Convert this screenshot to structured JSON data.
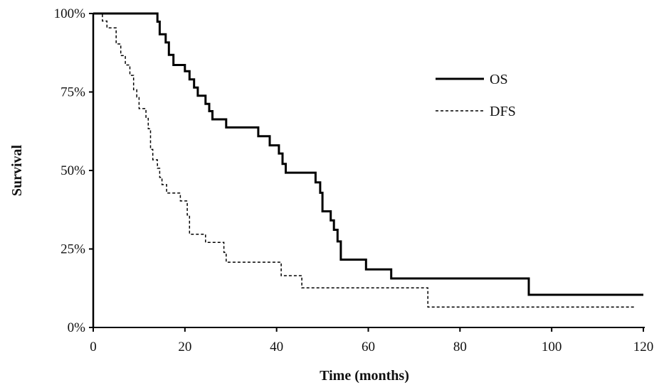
{
  "chart_data": {
    "type": "line",
    "step": true,
    "title": "",
    "xlabel": "Time (months)",
    "ylabel": "Survival",
    "xlim": [
      0,
      120
    ],
    "ylim": [
      0,
      100
    ],
    "x_ticks": [
      "0",
      "20",
      "40",
      "60",
      "80",
      "100",
      "120"
    ],
    "y_ticks": [
      "0%",
      "25%",
      "50%",
      "75%",
      "100%"
    ],
    "grid": false,
    "legend_position": "top-right",
    "series": [
      {
        "name": "OS",
        "line_style": "solid",
        "color": "#000000",
        "points": [
          [
            0,
            100
          ],
          [
            13.5,
            100
          ],
          [
            14,
            97.4
          ],
          [
            14.5,
            93.4
          ],
          [
            15.8,
            90.8
          ],
          [
            16.5,
            86.8
          ],
          [
            17.5,
            83.6
          ],
          [
            20,
            81.6
          ],
          [
            21,
            79.0
          ],
          [
            22,
            76.4
          ],
          [
            22.8,
            73.8
          ],
          [
            24.5,
            71.2
          ],
          [
            25.3,
            68.9
          ],
          [
            26,
            66.3
          ],
          [
            29,
            63.7
          ],
          [
            36,
            60.9
          ],
          [
            38.5,
            58.0
          ],
          [
            40.5,
            55.4
          ],
          [
            41.3,
            52.1
          ],
          [
            42,
            49.3
          ],
          [
            48.5,
            46.2
          ],
          [
            49.5,
            42.9
          ],
          [
            50,
            37.0
          ],
          [
            51.8,
            34.1
          ],
          [
            52.5,
            31.1
          ],
          [
            53.3,
            27.4
          ],
          [
            54,
            21.6
          ],
          [
            59.5,
            18.5
          ],
          [
            65,
            15.6
          ],
          [
            95,
            10.4
          ],
          [
            120,
            10.4
          ]
        ]
      },
      {
        "name": "DFS",
        "line_style": "dashed",
        "color": "#000000",
        "points": [
          [
            0,
            100
          ],
          [
            2,
            97.6
          ],
          [
            3,
            95.4
          ],
          [
            5,
            90.3
          ],
          [
            6,
            86.6
          ],
          [
            7,
            83.6
          ],
          [
            8,
            80.3
          ],
          [
            8.8,
            75.7
          ],
          [
            9.5,
            73.4
          ],
          [
            10,
            69.7
          ],
          [
            11.5,
            66.6
          ],
          [
            12,
            63.3
          ],
          [
            12.5,
            56.7
          ],
          [
            13,
            53.4
          ],
          [
            14,
            50.7
          ],
          [
            14.5,
            47.8
          ],
          [
            15,
            45.5
          ],
          [
            16,
            42.8
          ],
          [
            19,
            40.3
          ],
          [
            20.5,
            35.8
          ],
          [
            21,
            29.7
          ],
          [
            24.5,
            27.1
          ],
          [
            28.5,
            23.9
          ],
          [
            29,
            20.8
          ],
          [
            41,
            16.5
          ],
          [
            45.5,
            12.6
          ],
          [
            73,
            6.5
          ],
          [
            118,
            6.5
          ]
        ]
      }
    ]
  }
}
